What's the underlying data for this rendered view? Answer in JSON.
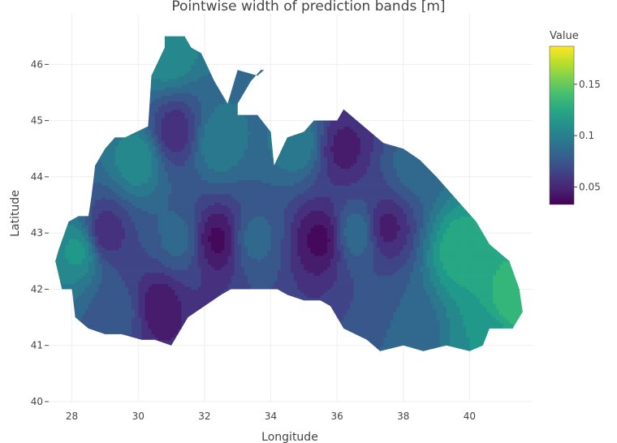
{
  "chart_data": {
    "type": "contour",
    "title": "Pointwise width of prediction bands [m]",
    "xlabel": "Longitude",
    "ylabel": "Latitude",
    "xlim": [
      27.3,
      41.9
    ],
    "ylim": [
      40,
      46.9
    ],
    "xticks": [
      "28",
      "30",
      "32",
      "34",
      "36",
      "38",
      "40"
    ],
    "yticks": [
      "40",
      "41",
      "42",
      "43",
      "44",
      "45",
      "46"
    ],
    "grid": true,
    "colorbar": {
      "title": "Value",
      "range": [
        0.033,
        0.187
      ],
      "ticks": [
        "0.05",
        "0.1",
        "0.15"
      ],
      "tick_values": [
        0.05,
        0.1,
        0.15
      ],
      "colorscale": "viridis"
    },
    "levels": [
      0.04,
      0.05,
      0.06,
      0.07,
      0.08,
      0.09,
      0.1,
      0.11,
      0.12,
      0.13,
      0.14
    ],
    "centers": [
      {
        "lon": 28.2,
        "lat": 42.7,
        "value": 0.115
      },
      {
        "lon": 30.0,
        "lat": 44.3,
        "value": 0.11
      },
      {
        "lon": 30.9,
        "lat": 46.2,
        "value": 0.11
      },
      {
        "lon": 32.4,
        "lat": 44.6,
        "value": 0.1
      },
      {
        "lon": 31.2,
        "lat": 42.9,
        "value": 0.085
      },
      {
        "lon": 33.5,
        "lat": 42.9,
        "value": 0.085
      },
      {
        "lon": 34.8,
        "lat": 44.6,
        "value": 0.1
      },
      {
        "lon": 36.6,
        "lat": 43.0,
        "value": 0.09
      },
      {
        "lon": 38.3,
        "lat": 44.2,
        "value": 0.085
      },
      {
        "lon": 39.7,
        "lat": 42.7,
        "value": 0.13
      },
      {
        "lon": 41.3,
        "lat": 41.8,
        "value": 0.14
      },
      {
        "lon": 40.6,
        "lat": 41.1,
        "value": 0.11
      },
      {
        "lon": 38.2,
        "lat": 41.3,
        "value": 0.08
      },
      {
        "lon": 29.5,
        "lat": 41.6,
        "value": 0.075
      },
      {
        "lon": 32.4,
        "lat": 42.9,
        "value": 0.035
      },
      {
        "lon": 35.5,
        "lat": 42.9,
        "value": 0.035
      },
      {
        "lon": 30.6,
        "lat": 41.7,
        "value": 0.04
      },
      {
        "lon": 37.5,
        "lat": 43.1,
        "value": 0.045
      },
      {
        "lon": 31.1,
        "lat": 44.8,
        "value": 0.05
      },
      {
        "lon": 36.2,
        "lat": 44.5,
        "value": 0.045
      },
      {
        "lon": 29.0,
        "lat": 43.0,
        "value": 0.05
      }
    ],
    "region_outline": [
      [
        29.6,
        44.7
      ],
      [
        30.3,
        44.9
      ],
      [
        30.4,
        45.8
      ],
      [
        30.8,
        46.3
      ],
      [
        30.8,
        46.5
      ],
      [
        31.4,
        46.5
      ],
      [
        31.6,
        46.3
      ],
      [
        31.9,
        46.2
      ],
      [
        32.3,
        45.7
      ],
      [
        32.7,
        45.3
      ],
      [
        33.0,
        45.9
      ],
      [
        33.6,
        45.8
      ],
      [
        33.8,
        45.9
      ],
      [
        33.7,
        45.9
      ],
      [
        33.4,
        45.7
      ],
      [
        33.0,
        45.3
      ],
      [
        33.0,
        45.1
      ],
      [
        33.6,
        45.1
      ],
      [
        34.0,
        44.8
      ],
      [
        34.1,
        44.2
      ],
      [
        34.5,
        44.7
      ],
      [
        35.0,
        44.8
      ],
      [
        35.3,
        45.0
      ],
      [
        36.0,
        45.0
      ],
      [
        36.2,
        45.2
      ],
      [
        36.6,
        45.0
      ],
      [
        37.0,
        44.8
      ],
      [
        37.4,
        44.6
      ],
      [
        38.0,
        44.5
      ],
      [
        38.5,
        44.3
      ],
      [
        39.0,
        44.0
      ],
      [
        39.6,
        43.6
      ],
      [
        40.2,
        43.2
      ],
      [
        40.6,
        42.8
      ],
      [
        41.2,
        42.5
      ],
      [
        41.5,
        42.0
      ],
      [
        41.6,
        41.6
      ],
      [
        41.3,
        41.3
      ],
      [
        40.6,
        41.3
      ],
      [
        40.4,
        41.0
      ],
      [
        40.0,
        40.9
      ],
      [
        39.3,
        41.0
      ],
      [
        38.6,
        40.9
      ],
      [
        38.0,
        41.0
      ],
      [
        37.3,
        40.9
      ],
      [
        36.9,
        41.1
      ],
      [
        36.2,
        41.3
      ],
      [
        35.8,
        41.7
      ],
      [
        35.5,
        41.8
      ],
      [
        35.0,
        41.8
      ],
      [
        34.5,
        41.9
      ],
      [
        34.2,
        42.0
      ],
      [
        33.5,
        42.0
      ],
      [
        32.8,
        42.0
      ],
      [
        32.5,
        41.9
      ],
      [
        32.0,
        41.7
      ],
      [
        31.5,
        41.5
      ],
      [
        31.0,
        41.0
      ],
      [
        30.5,
        41.1
      ],
      [
        30.1,
        41.1
      ],
      [
        29.5,
        41.2
      ],
      [
        29.0,
        41.2
      ],
      [
        28.5,
        41.3
      ],
      [
        28.1,
        41.5
      ],
      [
        28.0,
        42.0
      ],
      [
        27.7,
        42.0
      ],
      [
        27.5,
        42.5
      ],
      [
        27.6,
        42.7
      ],
      [
        27.9,
        43.2
      ],
      [
        28.2,
        43.3
      ],
      [
        28.5,
        43.3
      ],
      [
        28.6,
        43.7
      ],
      [
        28.7,
        44.2
      ],
      [
        29.0,
        44.5
      ],
      [
        29.3,
        44.7
      ]
    ]
  }
}
